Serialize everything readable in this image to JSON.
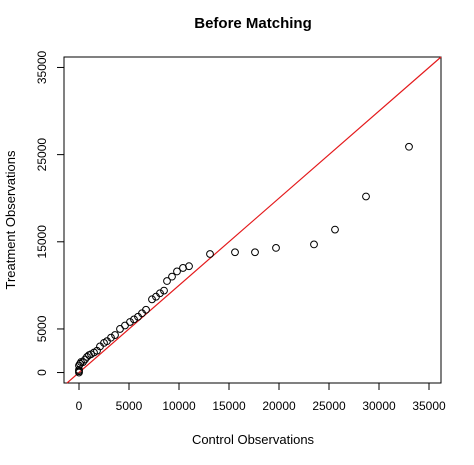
{
  "chart_data": {
    "type": "scatter",
    "title": "Before Matching",
    "xlabel": "Control Observations",
    "ylabel": "Treatment Observations",
    "xlim": [
      -1500,
      36200
    ],
    "ylim": [
      -1200,
      36200
    ],
    "x_ticks": [
      0,
      5000,
      10000,
      15000,
      20000,
      25000,
      30000,
      35000
    ],
    "y_ticks": [
      0,
      5000,
      15000,
      25000,
      35000
    ],
    "x_tick_labels": [
      "0",
      "5000",
      "10000",
      "15000",
      "20000",
      "25000",
      "30000",
      "35000"
    ],
    "y_tick_labels": [
      "0",
      "5000",
      "15000",
      "25000",
      "35000"
    ],
    "reference_line": {
      "type": "y=x",
      "color": "#e41a1c"
    },
    "point_color": "#000000",
    "grid": false,
    "points": [
      [
        0,
        0
      ],
      [
        0,
        150
      ],
      [
        0,
        300
      ],
      [
        0,
        800
      ],
      [
        100,
        1000
      ],
      [
        200,
        1200
      ],
      [
        400,
        1200
      ],
      [
        600,
        1500
      ],
      [
        800,
        1800
      ],
      [
        1000,
        2000
      ],
      [
        1200,
        2100
      ],
      [
        1500,
        2300
      ],
      [
        1800,
        2500
      ],
      [
        2100,
        3000
      ],
      [
        2500,
        3400
      ],
      [
        2800,
        3600
      ],
      [
        3200,
        4000
      ],
      [
        3600,
        4300
      ],
      [
        4100,
        5000
      ],
      [
        4600,
        5400
      ],
      [
        5100,
        5800
      ],
      [
        5500,
        6100
      ],
      [
        5900,
        6400
      ],
      [
        6300,
        6800
      ],
      [
        6700,
        7200
      ],
      [
        7300,
        8400
      ],
      [
        7700,
        8700
      ],
      [
        8100,
        9100
      ],
      [
        8500,
        9400
      ],
      [
        8800,
        10500
      ],
      [
        9300,
        11000
      ],
      [
        9800,
        11600
      ],
      [
        10400,
        12000
      ],
      [
        11000,
        12200
      ],
      [
        13100,
        13600
      ],
      [
        15600,
        13800
      ],
      [
        17600,
        13800
      ],
      [
        19700,
        14300
      ],
      [
        23500,
        14700
      ],
      [
        25600,
        16400
      ],
      [
        28700,
        20200
      ],
      [
        33000,
        25900
      ]
    ]
  }
}
